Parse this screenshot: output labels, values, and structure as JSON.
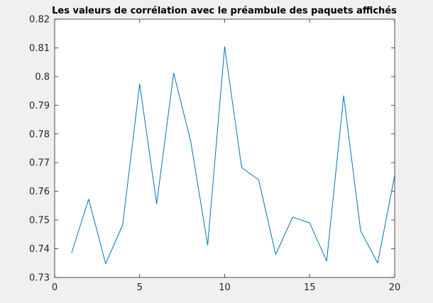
{
  "chart_data": {
    "type": "line",
    "title": "Les valeurs de corrélation avec le préambule des paquets affichés",
    "xlabel": "",
    "ylabel": "",
    "xlim": [
      0,
      20
    ],
    "ylim": [
      0.73,
      0.82
    ],
    "xticks": [
      "0",
      "5",
      "10",
      "15",
      "20"
    ],
    "yticks": [
      "0.73",
      "0.74",
      "0.75",
      "0.76",
      "0.77",
      "0.78",
      "0.79",
      "0.8",
      "0.81",
      "0.82"
    ],
    "grid": false,
    "series": [
      {
        "color": "#0072bd",
        "x": [
          1,
          2,
          3,
          4,
          5,
          6,
          7,
          8,
          9,
          10,
          11,
          12,
          13,
          14,
          15,
          16,
          17,
          18,
          19,
          20
        ],
        "y": [
          0.7386,
          0.7573,
          0.7348,
          0.7483,
          0.7974,
          0.7557,
          0.8012,
          0.7775,
          0.7413,
          0.8104,
          0.7683,
          0.764,
          0.738,
          0.751,
          0.749,
          0.7357,
          0.7933,
          0.7462,
          0.735,
          0.7655
        ]
      }
    ]
  }
}
